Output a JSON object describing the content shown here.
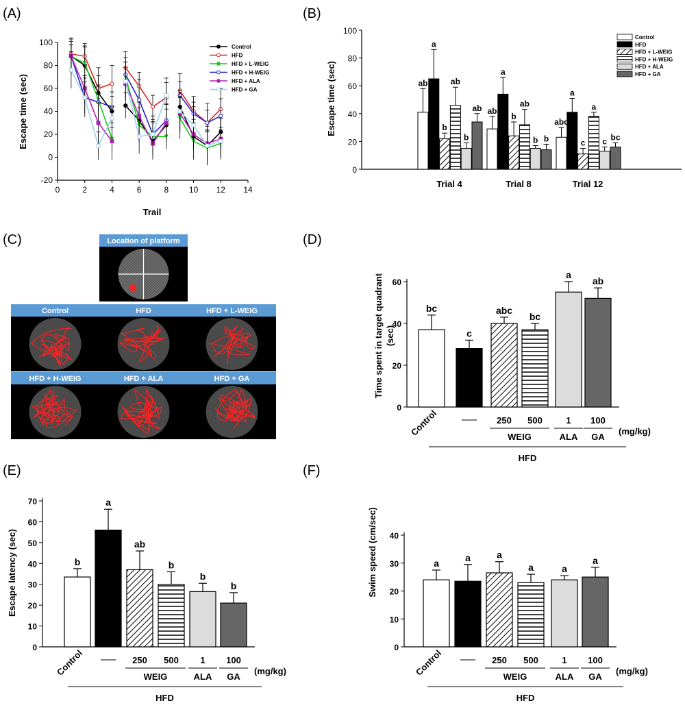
{
  "panel_labels": [
    "(A)",
    "(B)",
    "(C)",
    "(D)",
    "(E)",
    "(F)"
  ],
  "colors": {
    "Control": "#000000",
    "HFD": "#d62728",
    "HFD + L-WEIG": "#19c719",
    "HFD + H-WEIG": "#2020c0",
    "HFD + ALA": "#b020b0",
    "HFD + GA": "#9fd0f0",
    "bar_ala": "#dcdcdc",
    "bar_ga": "#666666",
    "tile_bar": "#5b9bd5",
    "track": "#ff2020"
  },
  "chart_data": [
    {
      "id": "A",
      "type": "line",
      "xlabel": "Trail",
      "ylabel": "Escape time (sec)",
      "xlim": [
        0,
        14
      ],
      "ylim": [
        -20,
        100
      ],
      "xticks": [
        0,
        2,
        4,
        6,
        8,
        10,
        12,
        14
      ],
      "yticks": [
        -20,
        0,
        20,
        40,
        60,
        80,
        100
      ],
      "legend_position": "top-right",
      "x": [
        1,
        2,
        3,
        4,
        5,
        6,
        7,
        8,
        9,
        10,
        11,
        12
      ],
      "series": [
        {
          "name": "Control",
          "values": [
            88,
            80,
            56,
            40,
            45,
            32,
            14,
            28,
            44,
            18,
            10,
            22
          ]
        },
        {
          "name": "HFD",
          "values": [
            90,
            88,
            60,
            64,
            78,
            62,
            44,
            52,
            58,
            40,
            30,
            42
          ]
        },
        {
          "name": "HFD + L-WEIG",
          "values": [
            88,
            82,
            50,
            16,
            70,
            28,
            18,
            18,
            34,
            14,
            8,
            12
          ]
        },
        {
          "name": "HFD + H-WEIG",
          "values": [
            88,
            52,
            48,
            44,
            72,
            50,
            20,
            32,
            54,
            38,
            30,
            36
          ]
        },
        {
          "name": "HFD + ALA",
          "values": [
            88,
            60,
            30,
            14,
            64,
            36,
            12,
            30,
            38,
            20,
            12,
            16
          ]
        },
        {
          "name": "HFD + GA",
          "values": [
            76,
            52,
            10,
            34,
            66,
            18,
            20,
            54,
            40,
            28,
            10,
            14
          ]
        }
      ]
    },
    {
      "id": "B",
      "type": "bar",
      "ylabel": "Escape time (sec)",
      "ylim": [
        0,
        100
      ],
      "yticks": [
        0,
        20,
        40,
        60,
        80,
        100
      ],
      "legend_position": "top-right",
      "categories": [
        "Trial 4",
        "Trial 8",
        "Trial 12"
      ],
      "series": [
        {
          "name": "Control",
          "values": [
            41,
            29,
            23
          ],
          "errors": [
            17,
            9,
            7
          ],
          "letters": [
            "ab",
            "ab",
            "abc"
          ]
        },
        {
          "name": "HFD",
          "values": [
            65,
            54,
            41
          ],
          "errors": [
            21,
            12,
            10
          ],
          "letters": [
            "a",
            "a",
            "a"
          ]
        },
        {
          "name": "HFD + L-WEIG",
          "values": [
            22,
            24,
            11
          ],
          "errors": [
            4,
            10,
            4
          ],
          "letters": [
            "b",
            "b",
            "c"
          ]
        },
        {
          "name": "HFD + H-WEIG",
          "values": [
            46,
            32,
            38
          ],
          "errors": [
            13,
            11,
            3
          ],
          "letters": [
            "ab",
            "ab",
            "a"
          ]
        },
        {
          "name": "HFD + ALA",
          "values": [
            15,
            15,
            13
          ],
          "errors": [
            4,
            2,
            3
          ],
          "letters": [
            "b",
            "b",
            "c"
          ]
        },
        {
          "name": "HFD + GA",
          "values": [
            34,
            14,
            16
          ],
          "errors": [
            6,
            4,
            3
          ],
          "letters": [
            "ab",
            "b",
            "bc"
          ]
        }
      ]
    },
    {
      "id": "D",
      "type": "bar",
      "ylabel": "Time spent in target quadrant (sec)",
      "ylim": [
        0,
        60
      ],
      "yticks": [
        0,
        20,
        40,
        60
      ],
      "categories": [
        "Control",
        "—",
        "250",
        "500",
        "1",
        "100"
      ],
      "values": [
        37,
        28,
        40,
        37,
        55,
        52
      ],
      "errors": [
        7,
        4,
        3,
        3,
        5,
        5
      ],
      "letters": [
        "bc",
        "c",
        "abc",
        "bc",
        "a",
        "ab"
      ],
      "units": "(mg/kg)",
      "groups": [
        {
          "label": "WEIG",
          "from": 2,
          "to": 3
        },
        {
          "label": "ALA",
          "from": 4,
          "to": 4
        },
        {
          "label": "GA",
          "from": 5,
          "to": 5
        }
      ],
      "supergroup": {
        "label": "HFD",
        "from": 1,
        "to": 5
      }
    },
    {
      "id": "E",
      "type": "bar",
      "ylabel": "Escape latency (sec)",
      "ylim": [
        0,
        70
      ],
      "yticks": [
        0,
        10,
        20,
        30,
        40,
        50,
        60,
        70
      ],
      "categories": [
        "Control",
        "—",
        "250",
        "500",
        "1",
        "100"
      ],
      "values": [
        33.5,
        56,
        37,
        30,
        26.5,
        21
      ],
      "errors": [
        4,
        10,
        9,
        6,
        4,
        5
      ],
      "letters": [
        "b",
        "a",
        "ab",
        "b",
        "b",
        "b"
      ],
      "units": "(mg/kg)",
      "groups": [
        {
          "label": "WEIG",
          "from": 2,
          "to": 3
        },
        {
          "label": "ALA",
          "from": 4,
          "to": 4
        },
        {
          "label": "GA",
          "from": 5,
          "to": 5
        }
      ],
      "supergroup": {
        "label": "HFD",
        "from": 1,
        "to": 5
      }
    },
    {
      "id": "F",
      "type": "bar",
      "ylabel": "Swim speed (cm/sec)",
      "ylim": [
        0,
        40
      ],
      "yticks": [
        0,
        10,
        20,
        30,
        40
      ],
      "categories": [
        "Control",
        "—",
        "250",
        "500",
        "1",
        "100"
      ],
      "values": [
        24,
        23.5,
        26.5,
        23,
        24,
        25
      ],
      "errors": [
        3.5,
        6,
        4,
        3,
        1.5,
        3.5
      ],
      "letters": [
        "a",
        "a",
        "a",
        "a",
        "a",
        "a"
      ],
      "units": "(mg/kg)",
      "groups": [
        {
          "label": "WEIG",
          "from": 2,
          "to": 3
        },
        {
          "label": "ALA",
          "from": 4,
          "to": 4
        },
        {
          "label": "GA",
          "from": 5,
          "to": 5
        }
      ],
      "supergroup": {
        "label": "HFD",
        "from": 1,
        "to": 5
      }
    }
  ],
  "panel_c": {
    "platform_title": "Location of platform",
    "tiles": [
      "Control",
      "HFD",
      "HFD + L-WEIG",
      "HFD + H-WEIG",
      "HFD + ALA",
      "HFD + GA"
    ]
  }
}
